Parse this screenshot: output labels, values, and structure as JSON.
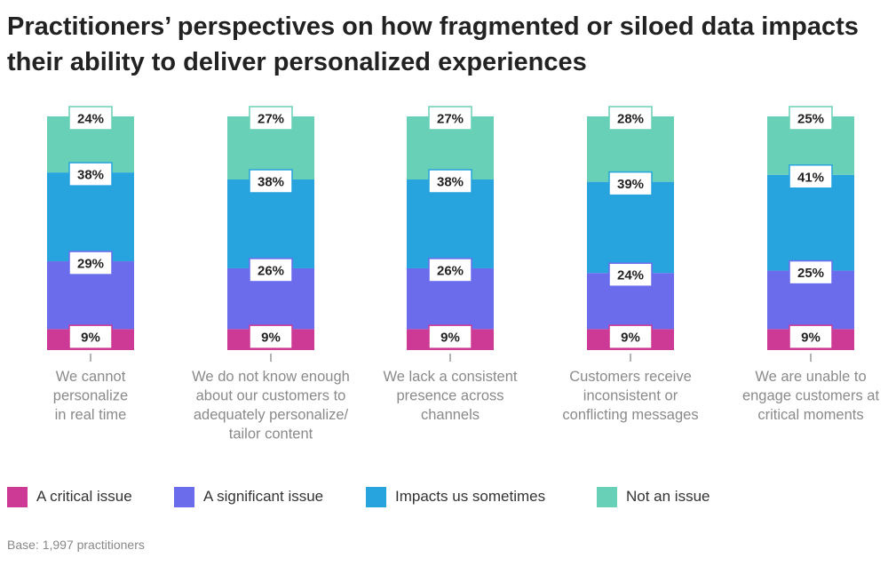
{
  "title": "Practitioners’ perspectives on how fragmented or siloed data impacts their ability to deliver personalized experiences",
  "base_note": "Base:  1,997 practitioners",
  "chart_data": {
    "type": "bar",
    "stacked": true,
    "normalized_percent": true,
    "title": "Practitioners’ perspectives on how fragmented or siloed data impacts their ability to deliver personalized experiences",
    "categories": [
      [
        "We cannot",
        "personalize",
        "in real time"
      ],
      [
        "We do not know enough",
        "about our customers to",
        "adequately personalize/",
        "tailor content"
      ],
      [
        "We lack a consistent",
        "presence across",
        "channels"
      ],
      [
        "Customers receive",
        "inconsistent or",
        "conflicting messages"
      ],
      [
        "We are unable to",
        "engage customers at",
        "critical moments"
      ]
    ],
    "series": [
      {
        "name": "A critical issue",
        "color": "#cc3a95",
        "values": [
          9,
          9,
          9,
          9,
          9
        ],
        "labels": [
          "9%",
          "9%",
          "9%",
          "9%",
          "9%"
        ]
      },
      {
        "name": "A significant issue",
        "color": "#6b6cec",
        "values": [
          29,
          26,
          26,
          24,
          25
        ],
        "labels": [
          "29%",
          "26%",
          "26%",
          "24%",
          "25%"
        ]
      },
      {
        "name": "Impacts us sometimes",
        "color": "#27a3de",
        "values": [
          38,
          38,
          38,
          39,
          41
        ],
        "labels": [
          "38%",
          "38%",
          "38%",
          "39%",
          "41%"
        ]
      },
      {
        "name": "Not an issue",
        "color": "#68d0b6",
        "values": [
          24,
          27,
          27,
          28,
          25
        ],
        "labels": [
          "24%",
          "27%",
          "27%",
          "28%",
          "25%"
        ]
      }
    ],
    "xlabel": "",
    "ylabel": "",
    "ylim": [
      0,
      100
    ],
    "grid": false,
    "legend_position": "bottom"
  }
}
